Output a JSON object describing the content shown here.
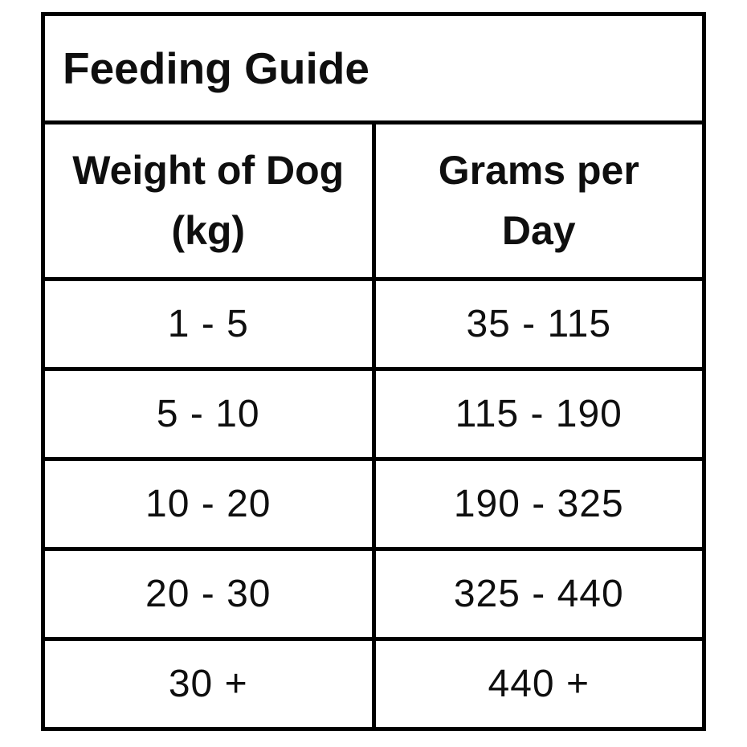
{
  "chart_data": {
    "type": "table",
    "title": "Feeding Guide",
    "columns": [
      "Weight of Dog (kg)",
      "Grams per Day"
    ],
    "header_lines": [
      [
        "Weight of Dog",
        "(kg)"
      ],
      [
        "Grams per",
        "Day"
      ]
    ],
    "rows": [
      [
        "1 - 5",
        "35 - 115"
      ],
      [
        "5 - 10",
        "115 - 190"
      ],
      [
        "10 - 20",
        "190 - 325"
      ],
      [
        "20 - 30",
        "325 - 440"
      ],
      [
        "30 +",
        "440 +"
      ]
    ]
  },
  "colors": {
    "border": "#000000",
    "text": "#0f0f0f",
    "background": "#ffffff"
  }
}
